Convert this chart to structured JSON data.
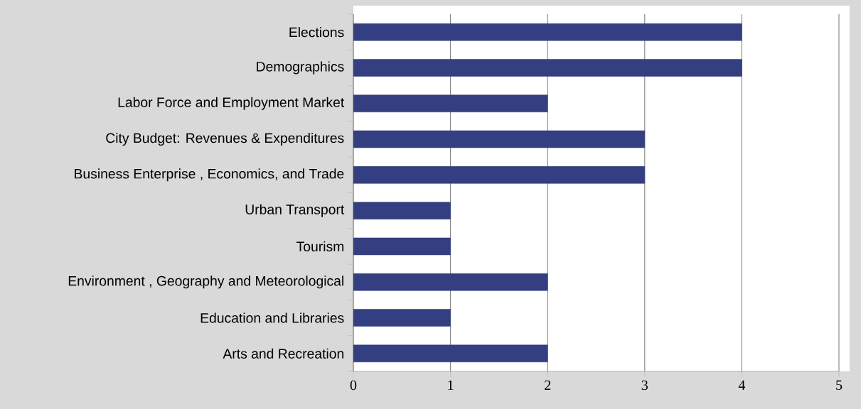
{
  "chart_data": {
    "type": "bar",
    "orientation": "horizontal",
    "categories": [
      "Elections",
      "Demographics",
      "Labor Force and Employment Market",
      "City Budget: Revenues & Expenditures",
      "Business Enterprise , Economics, and Trade",
      "Urban Transport",
      "Tourism",
      "Environment , Geography and Meteorological",
      "Education and Libraries",
      "Arts and Recreation"
    ],
    "values": [
      4,
      4,
      2,
      3,
      3,
      1,
      1,
      2,
      1,
      2
    ],
    "color": "#333f80",
    "xlim": [
      0,
      5
    ],
    "xticks": [
      0,
      1,
      2,
      3,
      4,
      5
    ],
    "grid": "x"
  }
}
